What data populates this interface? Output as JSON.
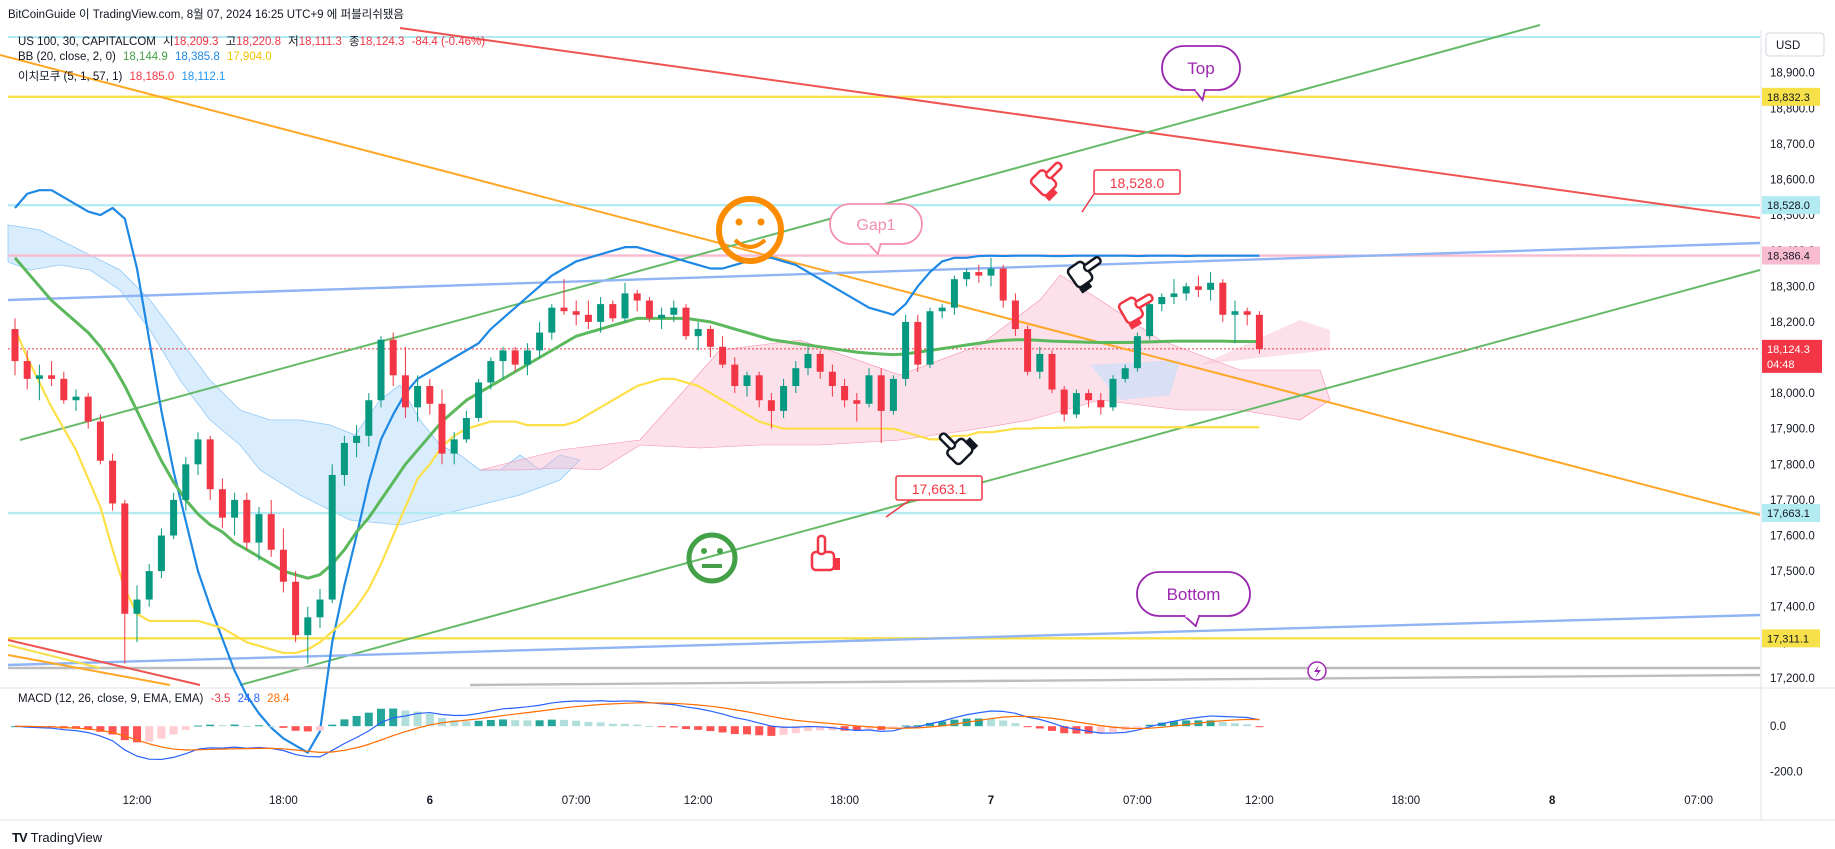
{
  "header": {
    "author": "BitCoinGuide",
    "attribution": "이 TradingView.com, 8월 07, 2024 16:25 UTC+9 에 퍼블리쉬됐음"
  },
  "legend": {
    "symbol": "US 100, 30, CAPITALCOM",
    "open_label": "시",
    "open": "18,209.3",
    "high_label": "고",
    "high": "18,220.8",
    "low_label": "저",
    "low": "18,111.3",
    "close_label": "종",
    "close": "18,124.3",
    "change": "-84.4 (-0.46%)",
    "bb_label": "BB (20, close, 2, 0)",
    "bb_basis": "18,144.9",
    "bb_upper": "18,385.8",
    "bb_lower": "17,904.0",
    "ma_label": "이치모쿠 (5, 1, 57, 1)",
    "ma_a": "18,185.0",
    "ma_b": "18,112.1",
    "macd_label": "MACD (12, 26, close, 9, EMA, EMA)",
    "macd_hist": "-3.5",
    "macd_line": "24.8",
    "macd_signal": "28.4"
  },
  "footer": {
    "brand": "TradingView"
  },
  "chart_data": {
    "type": "candlestick",
    "currency": "USD",
    "symbol": "US 100",
    "timeframe": "30",
    "y_ticks": [
      17200,
      17300,
      17400,
      17500,
      17600,
      17700,
      17800,
      17900,
      18000,
      18100,
      18200,
      18300,
      18400,
      18500,
      18600,
      18700,
      18800,
      18900
    ],
    "y_tick_labels": [
      "17,200.0",
      "17,300.0",
      "17,400.0",
      "17,500.0",
      "17,600.0",
      "17,700.0",
      "17,800.0",
      "17,900.0",
      "18,000.0",
      "18,100.0",
      "18,200.0",
      "18,300.0",
      "18,400.0",
      "18,500.0",
      "18,600.0",
      "18,700.0",
      "18,800.0",
      "18,900.0"
    ],
    "ylim": [
      17180,
      19020
    ],
    "x_ticks": [
      {
        "label": "12:00",
        "i": 10
      },
      {
        "label": "18:00",
        "i": 22
      },
      {
        "label": "6",
        "i": 34
      },
      {
        "label": "07:00",
        "i": 46
      },
      {
        "label": "12:00",
        "i": 56
      },
      {
        "label": "18:00",
        "i": 68
      },
      {
        "label": "7",
        "i": 80
      },
      {
        "label": "07:00",
        "i": 92
      },
      {
        "label": "12:00",
        "i": 102
      },
      {
        "label": "18:00",
        "i": 114
      },
      {
        "label": "8",
        "i": 126
      },
      {
        "label": "07:00",
        "i": 138
      }
    ],
    "candles": [
      [
        18180,
        18210,
        18050,
        18090
      ],
      [
        18090,
        18120,
        18010,
        18040
      ],
      [
        18040,
        18080,
        17980,
        18050
      ],
      [
        18050,
        18090,
        18020,
        18040
      ],
      [
        18040,
        18060,
        17970,
        17980
      ],
      [
        17980,
        18010,
        17950,
        17990
      ],
      [
        17990,
        18000,
        17900,
        17920
      ],
      [
        17920,
        17940,
        17800,
        17810
      ],
      [
        17810,
        17830,
        17670,
        17690
      ],
      [
        17690,
        17700,
        17240,
        17380
      ],
      [
        17380,
        17460,
        17300,
        17420
      ],
      [
        17420,
        17520,
        17400,
        17500
      ],
      [
        17500,
        17620,
        17480,
        17600
      ],
      [
        17600,
        17720,
        17590,
        17700
      ],
      [
        17700,
        17820,
        17670,
        17800
      ],
      [
        17800,
        17890,
        17770,
        17870
      ],
      [
        17870,
        17880,
        17700,
        17730
      ],
      [
        17730,
        17760,
        17620,
        17650
      ],
      [
        17650,
        17720,
        17600,
        17700
      ],
      [
        17700,
        17720,
        17560,
        17580
      ],
      [
        17580,
        17680,
        17530,
        17660
      ],
      [
        17660,
        17700,
        17540,
        17560
      ],
      [
        17560,
        17620,
        17440,
        17470
      ],
      [
        17470,
        17500,
        17300,
        17320
      ],
      [
        17320,
        17400,
        17240,
        17370
      ],
      [
        17370,
        17450,
        17340,
        17420
      ],
      [
        17420,
        17800,
        17410,
        17770
      ],
      [
        17770,
        17880,
        17740,
        17860
      ],
      [
        17860,
        17910,
        17820,
        17880
      ],
      [
        17880,
        18000,
        17850,
        17980
      ],
      [
        17980,
        18160,
        17960,
        18150
      ],
      [
        18150,
        18170,
        18020,
        18050
      ],
      [
        18050,
        18130,
        17930,
        17960
      ],
      [
        17960,
        18050,
        17920,
        18020
      ],
      [
        18020,
        18040,
        17940,
        17970
      ],
      [
        17970,
        18010,
        17800,
        17830
      ],
      [
        17830,
        17890,
        17800,
        17870
      ],
      [
        17870,
        17950,
        17860,
        17930
      ],
      [
        17930,
        18040,
        17920,
        18030
      ],
      [
        18030,
        18100,
        18010,
        18090
      ],
      [
        18090,
        18130,
        18040,
        18120
      ],
      [
        18120,
        18130,
        18060,
        18080
      ],
      [
        18080,
        18140,
        18050,
        18120
      ],
      [
        18120,
        18200,
        18100,
        18170
      ],
      [
        18170,
        18250,
        18150,
        18240
      ],
      [
        18240,
        18320,
        18220,
        18230
      ],
      [
        18230,
        18260,
        18190,
        18220
      ],
      [
        18220,
        18260,
        18180,
        18200
      ],
      [
        18200,
        18270,
        18170,
        18250
      ],
      [
        18250,
        18260,
        18200,
        18210
      ],
      [
        18210,
        18310,
        18200,
        18280
      ],
      [
        18280,
        18290,
        18230,
        18260
      ],
      [
        18260,
        18270,
        18200,
        18210
      ],
      [
        18210,
        18240,
        18180,
        18220
      ],
      [
        18220,
        18260,
        18200,
        18240
      ],
      [
        18240,
        18250,
        18150,
        18160
      ],
      [
        18160,
        18200,
        18120,
        18180
      ],
      [
        18180,
        18190,
        18100,
        18130
      ],
      [
        18130,
        18160,
        18070,
        18080
      ],
      [
        18080,
        18100,
        18000,
        18020
      ],
      [
        18020,
        18060,
        17990,
        18050
      ],
      [
        18050,
        18060,
        17960,
        17980
      ],
      [
        17980,
        18000,
        17900,
        17950
      ],
      [
        17950,
        18040,
        17930,
        18020
      ],
      [
        18020,
        18090,
        18000,
        18070
      ],
      [
        18070,
        18130,
        18050,
        18110
      ],
      [
        18110,
        18120,
        18040,
        18060
      ],
      [
        18060,
        18080,
        17990,
        18020
      ],
      [
        18020,
        18040,
        17960,
        17980
      ],
      [
        17980,
        18000,
        17920,
        17970
      ],
      [
        17970,
        18070,
        17960,
        18050
      ],
      [
        18050,
        18070,
        17860,
        17950
      ],
      [
        17950,
        18050,
        17940,
        18040
      ],
      [
        18040,
        18220,
        18020,
        18200
      ],
      [
        18200,
        18220,
        18060,
        18080
      ],
      [
        18080,
        18240,
        18070,
        18230
      ],
      [
        18230,
        18250,
        18210,
        18240
      ],
      [
        18240,
        18330,
        18220,
        18320
      ],
      [
        18320,
        18350,
        18300,
        18340
      ],
      [
        18340,
        18360,
        18310,
        18330
      ],
      [
        18330,
        18380,
        18300,
        18350
      ],
      [
        18350,
        18360,
        18240,
        18260
      ],
      [
        18260,
        18280,
        18160,
        18180
      ],
      [
        18180,
        18190,
        18050,
        18060
      ],
      [
        18060,
        18130,
        18040,
        18110
      ],
      [
        18110,
        18120,
        18000,
        18010
      ],
      [
        18010,
        18020,
        17920,
        17940
      ],
      [
        17940,
        18010,
        17930,
        18000
      ],
      [
        18000,
        18010,
        17960,
        17980
      ],
      [
        17980,
        18000,
        17940,
        17960
      ],
      [
        17960,
        18050,
        17950,
        18040
      ],
      [
        18040,
        18080,
        18030,
        18070
      ],
      [
        18070,
        18170,
        18060,
        18160
      ],
      [
        18160,
        18260,
        18150,
        18250
      ],
      [
        18250,
        18280,
        18230,
        18270
      ],
      [
        18270,
        18320,
        18250,
        18280
      ],
      [
        18280,
        18310,
        18260,
        18300
      ],
      [
        18300,
        18330,
        18270,
        18290
      ],
      [
        18290,
        18340,
        18260,
        18310
      ],
      [
        18310,
        18320,
        18200,
        18220
      ],
      [
        18220,
        18260,
        18140,
        18230
      ],
      [
        18230,
        18240,
        18190,
        18220
      ],
      [
        18220,
        18230,
        18111,
        18124
      ]
    ],
    "bb_upper": [
      18520,
      18560,
      18570,
      18570,
      18550,
      18530,
      18510,
      18500,
      18520,
      18490,
      18350,
      18150,
      17950,
      17780,
      17640,
      17500,
      17400,
      17310,
      17220,
      17150,
      17100,
      17060,
      17030,
      17010,
      16990,
      17050,
      17300,
      17460,
      17600,
      17750,
      17870,
      17940,
      18000,
      18040,
      18060,
      18080,
      18100,
      18120,
      18140,
      18180,
      18210,
      18240,
      18270,
      18300,
      18330,
      18350,
      18370,
      18380,
      18390,
      18400,
      18410,
      18410,
      18400,
      18390,
      18380,
      18370,
      18360,
      18350,
      18350,
      18360,
      18370,
      18380,
      18380,
      18370,
      18360,
      18340,
      18320,
      18300,
      18280,
      18260,
      18240,
      18230,
      18220,
      18250,
      18300,
      18340,
      18370,
      18380,
      18380,
      18385,
      18386,
      18385,
      18386,
      18386,
      18386,
      18385,
      18385,
      18386,
      18386,
      18386,
      18386,
      18386,
      18385,
      18386,
      18386,
      18386,
      18385,
      18386,
      18386,
      18386,
      18386,
      18386,
      18386
    ],
    "bb_basis": [
      18380,
      18340,
      18300,
      18260,
      18230,
      18200,
      18170,
      18130,
      18080,
      18020,
      17950,
      17880,
      17810,
      17750,
      17700,
      17660,
      17630,
      17610,
      17580,
      17560,
      17540,
      17520,
      17500,
      17490,
      17480,
      17490,
      17520,
      17560,
      17610,
      17650,
      17700,
      17750,
      17800,
      17840,
      17880,
      17920,
      17950,
      17980,
      18000,
      18020,
      18040,
      18060,
      18080,
      18100,
      18120,
      18140,
      18160,
      18170,
      18180,
      18190,
      18200,
      18210,
      18210,
      18210,
      18210,
      18210,
      18205,
      18200,
      18190,
      18180,
      18170,
      18160,
      18150,
      18145,
      18140,
      18135,
      18130,
      18125,
      18120,
      18115,
      18112,
      18110,
      18108,
      18110,
      18115,
      18120,
      18125,
      18130,
      18135,
      18140,
      18145,
      18148,
      18150,
      18150,
      18148,
      18146,
      18145,
      18144,
      18143,
      18142,
      18142,
      18142,
      18143,
      18144,
      18145,
      18146,
      18146,
      18146,
      18146,
      18146,
      18145,
      18145,
      18145
    ],
    "bb_lower": [
      18180,
      18100,
      18030,
      17960,
      17900,
      17840,
      17760,
      17680,
      17560,
      17450,
      17380,
      17360,
      17360,
      17360,
      17360,
      17360,
      17350,
      17340,
      17320,
      17300,
      17290,
      17280,
      17270,
      17270,
      17280,
      17300,
      17330,
      17360,
      17400,
      17450,
      17520,
      17600,
      17680,
      17760,
      17800,
      17850,
      17880,
      17900,
      17910,
      17920,
      17920,
      17920,
      17910,
      17910,
      17910,
      17910,
      17920,
      17940,
      17960,
      17980,
      18000,
      18020,
      18030,
      18040,
      18040,
      18030,
      18020,
      18000,
      17980,
      17960,
      17940,
      17920,
      17910,
      17900,
      17900,
      17900,
      17900,
      17900,
      17900,
      17900,
      17900,
      17900,
      17900,
      17890,
      17880,
      17870,
      17870,
      17880,
      17880,
      17890,
      17890,
      17895,
      17900,
      17900,
      17902,
      17902,
      17903,
      17903,
      17904,
      17904,
      17904,
      17904,
      17904,
      17904,
      17904,
      17904,
      17904,
      17904,
      17904,
      17904,
      17904,
      17904,
      17904
    ],
    "horizontal_levels": [
      {
        "value": 18832.3,
        "label": "18,832.3",
        "color": "#f7e14a"
      },
      {
        "value": 18528.0,
        "label": "18,528.0",
        "color": "#b2ebf2"
      },
      {
        "value": 18386.4,
        "label": "18,386.4",
        "color": "#f8bbd0"
      },
      {
        "value": 18124.3,
        "label": "18,124.3",
        "color": "#f23645"
      },
      {
        "value": 17663.1,
        "label": "17,663.1",
        "color": "#b2ebf2"
      },
      {
        "value": 17311.1,
        "label": "17,311.1",
        "color": "#f7e14a"
      }
    ],
    "annotations": {
      "top": "Top",
      "bottom": "Bottom",
      "gap": "Gap1",
      "price_high": "18,528.0",
      "price_low": "17,663.1"
    },
    "countdown": "04:48",
    "macd": {
      "ylim": [
        -260,
        160
      ],
      "y_ticks": [
        0,
        -200
      ],
      "y_tick_labels": [
        "0.0",
        "-200.0"
      ]
    }
  }
}
